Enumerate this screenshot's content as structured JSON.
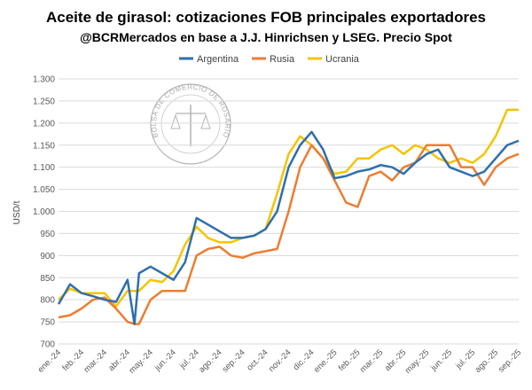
{
  "chart_data": {
    "type": "line",
    "title": "Aceite de girasol: cotizaciones FOB principales exportadores",
    "subtitle": "@BCRMercados en base a J.J. Hinrichsen y LSEG. Precio Spot",
    "ylabel": "USD/t",
    "ylim": [
      700,
      1300
    ],
    "yticks": [
      "700",
      "750",
      "800",
      "850",
      "900",
      "950",
      "1.000",
      "1.050",
      "1.100",
      "1.150",
      "1.200",
      "1.250",
      "1.300"
    ],
    "categories": [
      "ene.-24",
      "feb.-24",
      "mar.-24",
      "abr.-24",
      "may.-24",
      "jun.-24",
      "jul.-24",
      "ago.-24",
      "sep.-24",
      "oct.-24",
      "nov.-24",
      "dic.-24",
      "ene.-25",
      "feb.-25",
      "mar.-25",
      "abr.-25",
      "may.-25",
      "jun.-25",
      "jul.-25",
      "ago.-25",
      "sep.-25"
    ],
    "legend": "top",
    "grid": true,
    "x": [
      0,
      0.5,
      1,
      1.5,
      2,
      2.5,
      3,
      3.3,
      3.5,
      4,
      4.5,
      5,
      5.5,
      6,
      6.5,
      7,
      7.5,
      8,
      8.5,
      9,
      9.5,
      10,
      10.5,
      11,
      11.5,
      12,
      12.5,
      13,
      13.5,
      14,
      14.5,
      15,
      15.5,
      16,
      16.5,
      17,
      17.5,
      18,
      18.5,
      19,
      19.5,
      20
    ],
    "series": [
      {
        "name": "Argentina",
        "color": "#2e6fad",
        "values": [
          790,
          835,
          815,
          808,
          800,
          795,
          845,
          745,
          860,
          875,
          860,
          845,
          885,
          985,
          970,
          955,
          940,
          940,
          945,
          960,
          1000,
          1100,
          1150,
          1180,
          1140,
          1075,
          1080,
          1090,
          1095,
          1105,
          1100,
          1085,
          1110,
          1130,
          1140,
          1100,
          1090,
          1080,
          1090,
          1120,
          1150,
          1160
        ]
      },
      {
        "name": "Rusia",
        "color": "#ed7d31",
        "values": [
          760,
          765,
          780,
          800,
          805,
          780,
          750,
          745,
          745,
          800,
          820,
          820,
          820,
          900,
          915,
          920,
          900,
          895,
          905,
          910,
          915,
          1000,
          1100,
          1150,
          1120,
          1070,
          1020,
          1010,
          1080,
          1090,
          1070,
          1100,
          1110,
          1150,
          1150,
          1150,
          1100,
          1100,
          1060,
          1100,
          1120,
          1130
        ]
      },
      {
        "name": "Ucrania",
        "color": "#f5c400",
        "values": [
          800,
          825,
          815,
          815,
          815,
          785,
          820,
          820,
          820,
          845,
          840,
          865,
          925,
          965,
          940,
          930,
          930,
          940,
          945,
          960,
          1040,
          1130,
          1170,
          1150,
          1120,
          1085,
          1090,
          1120,
          1120,
          1140,
          1150,
          1130,
          1150,
          1140,
          1120,
          1110,
          1120,
          1110,
          1130,
          1170,
          1230,
          1230
        ]
      }
    ]
  },
  "logo": {
    "text": "BOLSA DE COMERCIO DE ROSARIO"
  }
}
